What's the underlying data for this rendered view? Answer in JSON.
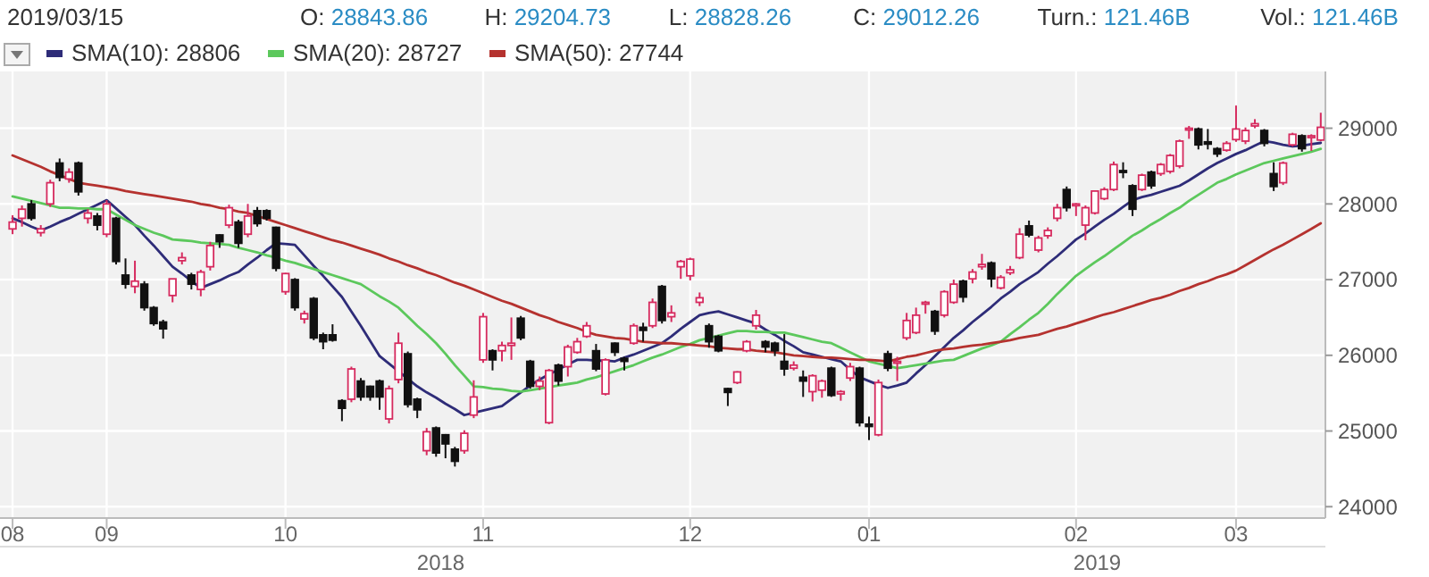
{
  "chart_data": {
    "type": "candlestick",
    "title": "2019/03/15",
    "subtitle": "O: 28843.86   H: 29204.73   L: 28828.26   C: 29012.26   Turn.: 121.46B   Vol.: 121.46B",
    "annotations": [
      "2018",
      "2019"
    ],
    "categories": [
      "08",
      null,
      null,
      null,
      null,
      null,
      null,
      null,
      null,
      null,
      "09",
      null,
      null,
      null,
      null,
      null,
      null,
      null,
      null,
      null,
      null,
      null,
      null,
      null,
      null,
      null,
      null,
      null,
      null,
      "10",
      null,
      null,
      null,
      null,
      null,
      null,
      null,
      null,
      null,
      null,
      null,
      null,
      null,
      null,
      null,
      null,
      null,
      null,
      null,
      null,
      "11",
      null,
      null,
      null,
      null,
      null,
      null,
      null,
      null,
      null,
      null,
      null,
      null,
      null,
      null,
      null,
      null,
      null,
      null,
      null,
      null,
      null,
      "12",
      null,
      null,
      null,
      null,
      null,
      null,
      null,
      null,
      null,
      null,
      null,
      null,
      null,
      null,
      null,
      null,
      null,
      null,
      "01",
      null,
      null,
      null,
      null,
      null,
      null,
      null,
      null,
      null,
      null,
      null,
      null,
      null,
      null,
      null,
      null,
      null,
      null,
      null,
      null,
      null,
      "02",
      null,
      null,
      null,
      null,
      null,
      null,
      null,
      null,
      null,
      null,
      null,
      null,
      null,
      null,
      null,
      null,
      "03",
      null,
      null,
      null,
      null,
      null,
      null,
      null,
      null,
      null
    ],
    "ohlc": [
      [
        27670,
        27850,
        27600,
        27760
      ],
      [
        27810,
        27980,
        27700,
        27930
      ],
      [
        28000,
        28050,
        27780,
        27810
      ],
      [
        27620,
        27720,
        27570,
        27670
      ],
      [
        28000,
        28320,
        27960,
        28280
      ],
      [
        28540,
        28600,
        28300,
        28350
      ],
      [
        28330,
        28470,
        28280,
        28420
      ],
      [
        28540,
        28560,
        28110,
        28160
      ],
      [
        27810,
        27930,
        27740,
        27880
      ],
      [
        27840,
        27880,
        27650,
        27720
      ],
      [
        27600,
        28050,
        27560,
        28000
      ],
      [
        27810,
        27830,
        27200,
        27240
      ],
      [
        27060,
        27280,
        26880,
        26940
      ],
      [
        26910,
        27250,
        26820,
        26980
      ],
      [
        26940,
        26980,
        26590,
        26630
      ],
      [
        26630,
        26650,
        26390,
        26420
      ],
      [
        26440,
        26470,
        26220,
        26350
      ],
      [
        26790,
        27010,
        26700,
        27010
      ],
      [
        27250,
        27360,
        27200,
        27290
      ],
      [
        27060,
        27090,
        26870,
        26940
      ],
      [
        26870,
        27130,
        26780,
        27100
      ],
      [
        27170,
        27500,
        27120,
        27450
      ],
      [
        27590,
        27600,
        27420,
        27500
      ],
      [
        27720,
        27990,
        27680,
        27950
      ],
      [
        27760,
        27790,
        27420,
        27480
      ],
      [
        27600,
        28000,
        27560,
        27840
      ],
      [
        27910,
        27960,
        27700,
        27740
      ],
      [
        27910,
        27930,
        27780,
        27810
      ],
      [
        27690,
        27700,
        27110,
        27150
      ],
      [
        26840,
        27090,
        26800,
        27080
      ],
      [
        27000,
        27020,
        26590,
        26630
      ],
      [
        26480,
        26590,
        26420,
        26550
      ],
      [
        26750,
        26770,
        26200,
        26230
      ],
      [
        26270,
        26300,
        26080,
        26180
      ],
      [
        26270,
        26410,
        26180,
        26200
      ],
      [
        25400,
        25420,
        25130,
        25300
      ],
      [
        25420,
        25850,
        25380,
        25820
      ],
      [
        25660,
        25700,
        25400,
        25450
      ],
      [
        25590,
        25600,
        25400,
        25450
      ],
      [
        25660,
        25680,
        25280,
        25450
      ],
      [
        25160,
        25600,
        25100,
        25560
      ],
      [
        25680,
        26300,
        25630,
        26160
      ],
      [
        26020,
        26050,
        25310,
        25350
      ],
      [
        25420,
        25440,
        25170,
        25280
      ],
      [
        24740,
        25040,
        24680,
        24990
      ],
      [
        25040,
        25060,
        24660,
        24710
      ],
      [
        24950,
        24960,
        24640,
        24830
      ],
      [
        24760,
        24790,
        24530,
        24600
      ],
      [
        24740,
        25010,
        24700,
        24970
      ],
      [
        25210,
        25670,
        25170,
        25450
      ],
      [
        25940,
        26560,
        25900,
        26510
      ],
      [
        26060,
        26080,
        25800,
        25940
      ],
      [
        26060,
        26180,
        25920,
        26130
      ],
      [
        26130,
        26500,
        25940,
        26160
      ],
      [
        26490,
        26520,
        26200,
        26230
      ],
      [
        25920,
        25940,
        25560,
        25590
      ],
      [
        25590,
        25720,
        25540,
        25660
      ],
      [
        25110,
        25820,
        25090,
        25800
      ],
      [
        25870,
        25890,
        25600,
        25660
      ],
      [
        25850,
        26140,
        25720,
        26110
      ],
      [
        26040,
        26230,
        26020,
        26180
      ],
      [
        26250,
        26440,
        26230,
        26390
      ],
      [
        26060,
        26150,
        25790,
        25820
      ],
      [
        25490,
        25960,
        25470,
        25940
      ],
      [
        26160,
        26170,
        25990,
        26040
      ],
      [
        25960,
        25980,
        25800,
        25920
      ],
      [
        26160,
        26420,
        26140,
        26390
      ],
      [
        26370,
        26430,
        26180,
        26330
      ],
      [
        26390,
        26750,
        26360,
        26700
      ],
      [
        26910,
        26930,
        26420,
        26460
      ],
      [
        26510,
        26660,
        26440,
        26560
      ],
      [
        27170,
        27260,
        27010,
        27240
      ],
      [
        27050,
        27290,
        26990,
        27270
      ],
      [
        26700,
        26830,
        26650,
        26760
      ],
      [
        26390,
        26420,
        26100,
        26180
      ],
      [
        26250,
        26270,
        26040,
        26060
      ],
      [
        25560,
        25570,
        25330,
        25510
      ],
      [
        25640,
        25790,
        25620,
        25780
      ],
      [
        26060,
        26200,
        26040,
        26180
      ],
      [
        26390,
        26600,
        26340,
        26530
      ],
      [
        26180,
        26200,
        26040,
        26110
      ],
      [
        26160,
        26180,
        25990,
        26060
      ],
      [
        25920,
        26280,
        25730,
        25820
      ],
      [
        25830,
        25920,
        25800,
        25870
      ],
      [
        25710,
        25800,
        25450,
        25660
      ],
      [
        25520,
        25750,
        25390,
        25730
      ],
      [
        25540,
        25680,
        25440,
        25660
      ],
      [
        25830,
        25850,
        25450,
        25470
      ],
      [
        25490,
        25540,
        25400,
        25520
      ],
      [
        25700,
        25900,
        25660,
        25850
      ],
      [
        25830,
        25850,
        25060,
        25110
      ],
      [
        25090,
        25190,
        24880,
        25060
      ],
      [
        24950,
        25680,
        24930,
        25640
      ],
      [
        26020,
        26060,
        25790,
        25830
      ],
      [
        25900,
        25980,
        25660,
        25920
      ],
      [
        26230,
        26560,
        26200,
        26460
      ],
      [
        26300,
        26630,
        26280,
        26530
      ],
      [
        26690,
        26720,
        26550,
        26700
      ],
      [
        26580,
        26600,
        26270,
        26320
      ],
      [
        26530,
        26860,
        26500,
        26840
      ],
      [
        26700,
        27000,
        26680,
        26940
      ],
      [
        26980,
        27000,
        26700,
        26770
      ],
      [
        27010,
        27140,
        26950,
        27100
      ],
      [
        27170,
        27340,
        27130,
        27200
      ],
      [
        27220,
        27240,
        26900,
        27010
      ],
      [
        26890,
        27060,
        26870,
        27030
      ],
      [
        27090,
        27180,
        27060,
        27130
      ],
      [
        27290,
        27680,
        27270,
        27600
      ],
      [
        27710,
        27780,
        27560,
        27590
      ],
      [
        27390,
        27580,
        27360,
        27550
      ],
      [
        27580,
        27690,
        27540,
        27650
      ],
      [
        27810,
        28000,
        27770,
        27950
      ],
      [
        28190,
        28230,
        27900,
        27950
      ],
      [
        27980,
        28010,
        27840,
        28000
      ],
      [
        27720,
        27980,
        27520,
        27950
      ],
      [
        27880,
        28180,
        27860,
        28170
      ],
      [
        28070,
        28220,
        28050,
        28190
      ],
      [
        28190,
        28560,
        28170,
        28520
      ],
      [
        28440,
        28550,
        28340,
        28420
      ],
      [
        28240,
        28260,
        27840,
        27930
      ],
      [
        28190,
        28400,
        28170,
        28380
      ],
      [
        28420,
        28440,
        28200,
        28240
      ],
      [
        28400,
        28540,
        28370,
        28520
      ],
      [
        28430,
        28660,
        28400,
        28640
      ],
      [
        28500,
        28850,
        28470,
        28830
      ],
      [
        28980,
        29030,
        28860,
        29000
      ],
      [
        28990,
        29010,
        28720,
        28780
      ],
      [
        28820,
        28990,
        28720,
        28790
      ],
      [
        28730,
        28750,
        28620,
        28660
      ],
      [
        28710,
        28830,
        28690,
        28800
      ],
      [
        28850,
        29300,
        28820,
        28990
      ],
      [
        28830,
        29010,
        28790,
        28970
      ],
      [
        29030,
        29120,
        29000,
        29060
      ],
      [
        28970,
        28990,
        28760,
        28800
      ],
      [
        28400,
        28550,
        28170,
        28230
      ],
      [
        28280,
        28560,
        28250,
        28540
      ],
      [
        28780,
        28940,
        28760,
        28920
      ],
      [
        28900,
        28920,
        28690,
        28730
      ],
      [
        28880,
        28920,
        28700,
        28900
      ],
      [
        28843.86,
        29204.73,
        28828.26,
        29012.26
      ]
    ],
    "series": [
      {
        "type": "line",
        "name": "SMA(10): 28806",
        "color": "#2e2c78",
        "values": [
          27810,
          27760,
          27700,
          27650,
          27700,
          27760,
          27810,
          27870,
          27930,
          27990,
          28050,
          27940,
          27830,
          27720,
          27580,
          27450,
          27310,
          27170,
          27080,
          26980,
          26890,
          26940,
          26990,
          27050,
          27100,
          27200,
          27290,
          27390,
          27480,
          27470,
          27460,
          27320,
          27180,
          27050,
          26910,
          26770,
          26580,
          26390,
          26190,
          25990,
          25890,
          25790,
          25690,
          25590,
          25510,
          25440,
          25360,
          25290,
          25210,
          25240,
          25270,
          25300,
          25330,
          25420,
          25510,
          25600,
          25680,
          25750,
          25810,
          25880,
          25940,
          25940,
          25930,
          25930,
          25920,
          25970,
          26010,
          26060,
          26110,
          26160,
          26250,
          26350,
          26440,
          26530,
          26560,
          26580,
          26540,
          26500,
          26460,
          26420,
          26340,
          26270,
          26190,
          26120,
          26040,
          26010,
          25980,
          25950,
          25920,
          25810,
          25710,
          25660,
          25610,
          25570,
          25600,
          25640,
          25760,
          25870,
          25990,
          26110,
          26230,
          26330,
          26440,
          26540,
          26640,
          26750,
          26840,
          26940,
          27020,
          27100,
          27210,
          27310,
          27420,
          27530,
          27610,
          27700,
          27790,
          27870,
          27960,
          28050,
          28090,
          28120,
          28160,
          28200,
          28240,
          28310,
          28390,
          28470,
          28540,
          28600,
          28660,
          28710,
          28770,
          28830,
          28810,
          28780,
          28760,
          28770,
          28790,
          28806
        ]
      },
      {
        "type": "line",
        "name": "SMA(20): 28727",
        "color": "#5cc85c",
        "values": [
          28100,
          28070,
          28040,
          28010,
          27980,
          27950,
          27950,
          27940,
          27940,
          27930,
          27930,
          27860,
          27790,
          27720,
          27670,
          27620,
          27580,
          27530,
          27520,
          27510,
          27490,
          27480,
          27470,
          27460,
          27420,
          27390,
          27360,
          27320,
          27290,
          27250,
          27220,
          27180,
          27140,
          27100,
          27060,
          27020,
          26980,
          26940,
          26860,
          26780,
          26710,
          26630,
          26510,
          26390,
          26280,
          26160,
          26020,
          25870,
          25730,
          25590,
          25580,
          25560,
          25550,
          25530,
          25520,
          25540,
          25560,
          25580,
          25600,
          25620,
          25640,
          25680,
          25710,
          25750,
          25790,
          25830,
          25870,
          25920,
          25970,
          26010,
          26060,
          26110,
          26150,
          26200,
          26230,
          26260,
          26290,
          26320,
          26320,
          26310,
          26310,
          26300,
          26300,
          26270,
          26240,
          26210,
          26180,
          26160,
          26100,
          26040,
          25980,
          25920,
          25890,
          25860,
          25830,
          25850,
          25870,
          25890,
          25910,
          25930,
          25940,
          25990,
          26040,
          26090,
          26130,
          26180,
          26280,
          26370,
          26470,
          26560,
          26680,
          26810,
          26930,
          27050,
          27140,
          27230,
          27310,
          27400,
          27490,
          27580,
          27650,
          27730,
          27800,
          27880,
          27950,
          28040,
          28120,
          28200,
          28280,
          28330,
          28390,
          28440,
          28490,
          28540,
          28570,
          28600,
          28630,
          28660,
          28690,
          28727
        ]
      },
      {
        "type": "line",
        "name": "SMA(50): 27744",
        "color": "#b5322f",
        "values": [
          28640,
          28590,
          28540,
          28490,
          28430,
          28380,
          28330,
          28280,
          28260,
          28240,
          28220,
          28200,
          28170,
          28150,
          28130,
          28110,
          28090,
          28070,
          28050,
          28030,
          28000,
          27980,
          27950,
          27930,
          27900,
          27880,
          27840,
          27800,
          27760,
          27720,
          27680,
          27640,
          27600,
          27560,
          27520,
          27490,
          27450,
          27410,
          27370,
          27330,
          27280,
          27240,
          27190,
          27150,
          27100,
          27060,
          27010,
          26960,
          26920,
          26870,
          26820,
          26770,
          26720,
          26680,
          26630,
          26580,
          26530,
          26490,
          26440,
          26400,
          26360,
          26310,
          26270,
          26250,
          26230,
          26220,
          26200,
          26180,
          26170,
          26160,
          26160,
          26150,
          26140,
          26130,
          26120,
          26100,
          26090,
          26080,
          26080,
          26060,
          26050,
          26040,
          26020,
          26000,
          25990,
          25980,
          25970,
          25970,
          25960,
          25950,
          25940,
          25940,
          25930,
          25920,
          25950,
          25980,
          26000,
          26030,
          26060,
          26080,
          26090,
          26110,
          26130,
          26140,
          26160,
          26180,
          26200,
          26230,
          26250,
          26270,
          26310,
          26350,
          26380,
          26420,
          26460,
          26500,
          26540,
          26570,
          26610,
          26650,
          26690,
          26730,
          26760,
          26800,
          26850,
          26890,
          26940,
          26980,
          27030,
          27070,
          27120,
          27190,
          27260,
          27330,
          27400,
          27460,
          27530,
          27600,
          27670,
          27744
        ]
      }
    ],
    "ylim": [
      23850,
      29750
    ],
    "yticks": [
      24000,
      25000,
      26000,
      27000,
      28000,
      29000
    ],
    "grid": true,
    "legend": "top left"
  }
}
